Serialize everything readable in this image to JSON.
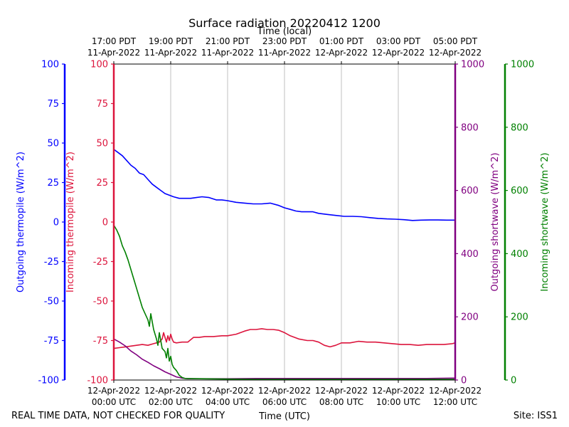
{
  "chart_data": {
    "type": "line",
    "title": "Surface radiation 20220412 1200",
    "top_axis_label": "Time (local)",
    "xlabel": "Time (UTC)",
    "footer_left": "REAL TIME DATA, NOT CHECKED FOR QUALITY",
    "footer_right": "Site: ISS1",
    "xlim": [
      0,
      12
    ],
    "grid": "vertical",
    "bottom_ticks": [
      {
        "x": 0,
        "line1": "12-Apr-2022",
        "line2": "00:00 UTC"
      },
      {
        "x": 2,
        "line1": "12-Apr-2022",
        "line2": "02:00 UTC"
      },
      {
        "x": 4,
        "line1": "12-Apr-2022",
        "line2": "04:00 UTC"
      },
      {
        "x": 6,
        "line1": "12-Apr-2022",
        "line2": "06:00 UTC"
      },
      {
        "x": 8,
        "line1": "12-Apr-2022",
        "line2": "08:00 UTC"
      },
      {
        "x": 10,
        "line1": "12-Apr-2022",
        "line2": "10:00 UTC"
      },
      {
        "x": 12,
        "line1": "12-Apr-2022",
        "line2": "12:00 UTC"
      }
    ],
    "top_ticks": [
      {
        "x": 0,
        "line1": "17:00 PDT",
        "line2": "11-Apr-2022"
      },
      {
        "x": 2,
        "line1": "19:00 PDT",
        "line2": "11-Apr-2022"
      },
      {
        "x": 4,
        "line1": "21:00 PDT",
        "line2": "11-Apr-2022"
      },
      {
        "x": 6,
        "line1": "23:00 PDT",
        "line2": "11-Apr-2022"
      },
      {
        "x": 8,
        "line1": "01:00 PDT",
        "line2": "12-Apr-2022"
      },
      {
        "x": 10,
        "line1": "03:00 PDT",
        "line2": "12-Apr-2022"
      },
      {
        "x": 12,
        "line1": "05:00 PDT",
        "line2": "12-Apr-2022"
      }
    ],
    "axes": [
      {
        "id": "out_thermo",
        "label": "Outgoing thermopile (W/m^2)",
        "color": "#0000ff",
        "ylim": [
          -100,
          100
        ],
        "ticks": [
          100,
          75,
          50,
          25,
          0,
          -25,
          -50,
          -75,
          -100
        ],
        "side": "left-outer"
      },
      {
        "id": "in_thermo",
        "label": "Incoming thermopile (W/m^2)",
        "color": "#dc143c",
        "ylim": [
          -100,
          100
        ],
        "ticks": [
          100,
          75,
          50,
          25,
          0,
          -25,
          -50,
          -75,
          -100
        ],
        "side": "left-inner"
      },
      {
        "id": "out_sw",
        "label": "Outgoing shortwave (W/m^2)",
        "color": "#800080",
        "ylim": [
          0,
          1000
        ],
        "ticks": [
          1000,
          800,
          600,
          400,
          200,
          0
        ],
        "side": "right-inner"
      },
      {
        "id": "in_sw",
        "label": "Incoming shortwave (W/m^2)",
        "color": "#008000",
        "ylim": [
          0,
          1000
        ],
        "ticks": [
          1000,
          800,
          600,
          400,
          200,
          0
        ],
        "side": "right-outer"
      }
    ],
    "series": [
      {
        "name": "Outgoing thermopile",
        "axis": "out_thermo",
        "color": "#0000ff",
        "x": [
          0,
          0.15,
          0.3,
          0.45,
          0.6,
          0.75,
          0.9,
          1.05,
          1.2,
          1.35,
          1.5,
          1.65,
          1.8,
          1.95,
          2.1,
          2.3,
          2.5,
          2.7,
          2.9,
          3.1,
          3.35,
          3.6,
          3.8,
          4.0,
          4.3,
          4.6,
          4.9,
          5.2,
          5.5,
          5.8,
          6.0,
          6.2,
          6.4,
          6.6,
          6.8,
          7.0,
          7.2,
          7.5,
          7.8,
          8.1,
          8.4,
          8.7,
          9.0,
          9.3,
          9.6,
          9.9,
          10.2,
          10.5,
          10.8,
          11.1,
          11.4,
          11.7,
          12.0
        ],
        "y": [
          46,
          44,
          42,
          39,
          36,
          34,
          31,
          30,
          27,
          24,
          22,
          20,
          18,
          17,
          16,
          15,
          15,
          15,
          15.5,
          16,
          15.5,
          14,
          14,
          13.5,
          12.5,
          12,
          11.5,
          11.5,
          12,
          10.5,
          9,
          8,
          7,
          6.5,
          6.5,
          6.5,
          5.5,
          4.8,
          4.2,
          3.6,
          3.6,
          3.4,
          2.8,
          2.3,
          2,
          1.8,
          1.5,
          1,
          1.2,
          1.3,
          1.3,
          1.2,
          1.2
        ]
      },
      {
        "name": "Incoming thermopile",
        "axis": "in_thermo",
        "color": "#dc143c",
        "x": [
          0,
          0.2,
          0.4,
          0.6,
          0.8,
          1.0,
          1.2,
          1.4,
          1.6,
          1.7,
          1.75,
          1.8,
          1.85,
          1.9,
          1.95,
          2.0,
          2.05,
          2.1,
          2.2,
          2.4,
          2.6,
          2.8,
          3.0,
          3.2,
          3.5,
          3.8,
          4.0,
          4.3,
          4.6,
          4.8,
          5.0,
          5.2,
          5.4,
          5.6,
          5.8,
          6.0,
          6.2,
          6.5,
          6.8,
          7.0,
          7.2,
          7.4,
          7.6,
          7.8,
          8.0,
          8.3,
          8.6,
          8.9,
          9.2,
          9.5,
          9.8,
          10.1,
          10.4,
          10.7,
          11.0,
          11.3,
          11.6,
          11.9,
          12.0
        ],
        "y": [
          -80,
          -79.5,
          -79,
          -78.5,
          -78,
          -77.5,
          -78,
          -77,
          -76,
          -74,
          -70,
          -73,
          -76,
          -72,
          -75,
          -71,
          -74,
          -76,
          -76.5,
          -76,
          -76,
          -73,
          -73,
          -72.5,
          -72.5,
          -72,
          -72,
          -71,
          -69,
          -68,
          -68,
          -67.5,
          -68,
          -68,
          -68.5,
          -70,
          -72,
          -74,
          -75,
          -75,
          -76,
          -78,
          -79,
          -78,
          -76.5,
          -76.5,
          -75.5,
          -76,
          -76,
          -76.5,
          -77,
          -77.5,
          -77.5,
          -78,
          -77.5,
          -77.5,
          -77.5,
          -77,
          -76.5
        ]
      },
      {
        "name": "Outgoing shortwave",
        "axis": "out_sw",
        "color": "#800080",
        "x": [
          0,
          0.2,
          0.4,
          0.6,
          0.8,
          1.0,
          1.2,
          1.4,
          1.6,
          1.8,
          2.0,
          2.2,
          2.4,
          2.6,
          3.0,
          4.0,
          5.0,
          6.0,
          7.0,
          8.0,
          9.0,
          10.0,
          11.0,
          12.0
        ],
        "y": [
          130,
          120,
          108,
          92,
          80,
          66,
          56,
          45,
          36,
          26,
          18,
          10,
          6,
          4,
          4,
          4,
          5,
          5,
          5,
          5,
          5,
          5,
          5,
          6
        ]
      },
      {
        "name": "Incoming shortwave",
        "axis": "in_sw",
        "color": "#008000",
        "x": [
          0,
          0.1,
          0.2,
          0.3,
          0.4,
          0.5,
          0.6,
          0.7,
          0.8,
          0.9,
          1.0,
          1.1,
          1.2,
          1.25,
          1.3,
          1.4,
          1.5,
          1.55,
          1.6,
          1.7,
          1.8,
          1.85,
          1.9,
          1.95,
          2.0,
          2.05,
          2.1,
          2.2,
          2.3,
          2.4,
          2.5,
          3.0,
          4.0,
          5.0,
          6.0,
          7.0,
          8.0,
          9.0,
          10.0,
          11.0,
          12.0
        ],
        "y": [
          490,
          475,
          455,
          425,
          405,
          380,
          350,
          320,
          290,
          260,
          230,
          210,
          190,
          170,
          210,
          160,
          130,
          110,
          150,
          100,
          90,
          70,
          100,
          60,
          75,
          50,
          40,
          30,
          15,
          8,
          5,
          4,
          3,
          2,
          2,
          2,
          2,
          2,
          2,
          2,
          2
        ]
      }
    ]
  }
}
